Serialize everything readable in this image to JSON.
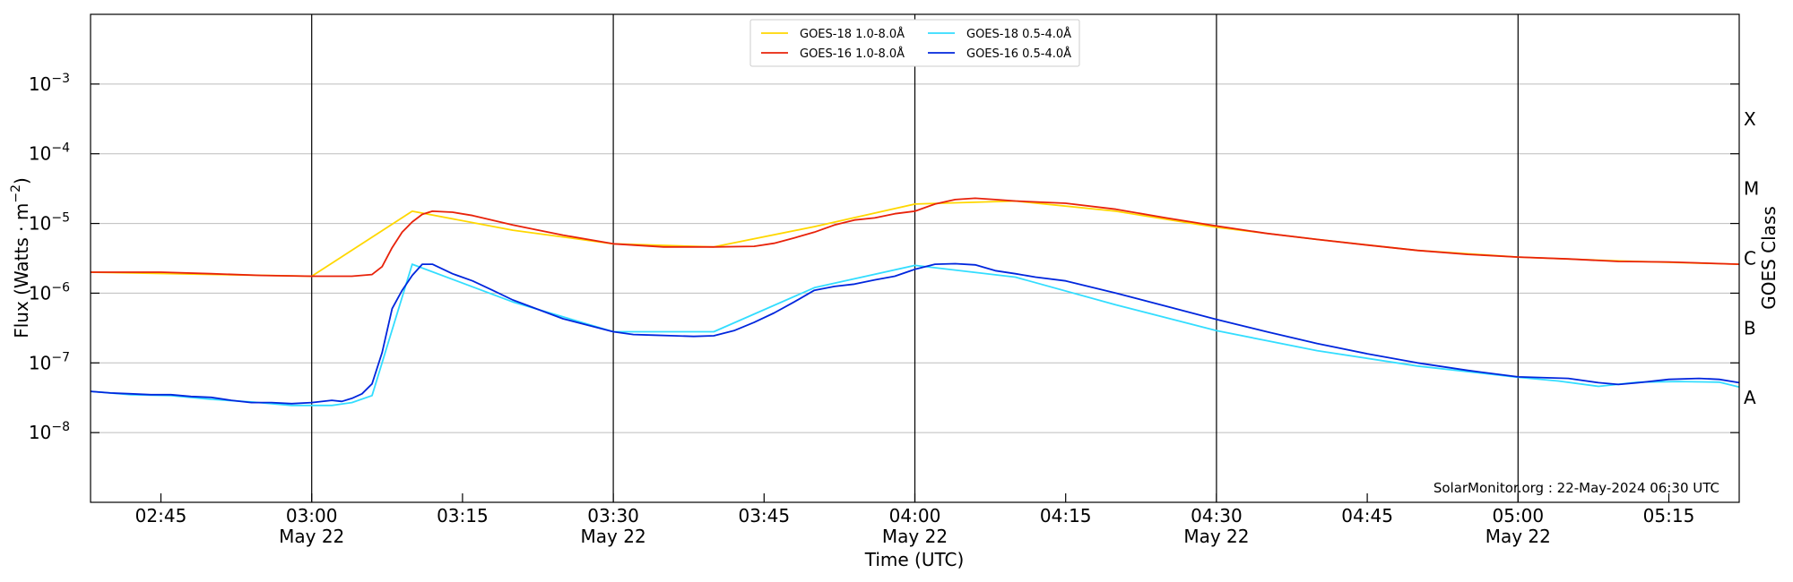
{
  "chart_data": {
    "type": "line",
    "ylabel_pre": "Flux (Watts · m",
    "ylabel_exp": "−2",
    "ylabel_post": ")",
    "right_label": "GOES Class",
    "xlabel": "Time (UTC)",
    "credit": "SolarMonitor.org : 22-May-2024 06:30 UTC",
    "y_scale": "log",
    "ylim": [
      1e-09,
      0.01
    ],
    "x_units": "minutes since 00:00 UTC, 22-May-2024",
    "xlim": [
      158,
      322
    ],
    "grid": "horizontal",
    "legend_position": "top-center",
    "y_ticks": [
      {
        "value": 1e-08,
        "base": "10",
        "exp": "−8"
      },
      {
        "value": 1e-07,
        "base": "10",
        "exp": "−7"
      },
      {
        "value": 1e-06,
        "base": "10",
        "exp": "−6"
      },
      {
        "value": 1e-05,
        "base": "10",
        "exp": "−5"
      },
      {
        "value": 0.0001,
        "base": "10",
        "exp": "−4"
      },
      {
        "value": 0.001,
        "base": "10",
        "exp": "−3"
      }
    ],
    "x_ticks": [
      {
        "value": 165,
        "label": "02:45",
        "sub": "",
        "major": false
      },
      {
        "value": 180,
        "label": "03:00",
        "sub": "May 22",
        "major": true
      },
      {
        "value": 195,
        "label": "03:15",
        "sub": "",
        "major": false
      },
      {
        "value": 210,
        "label": "03:30",
        "sub": "May 22",
        "major": true
      },
      {
        "value": 225,
        "label": "03:45",
        "sub": "",
        "major": false
      },
      {
        "value": 240,
        "label": "04:00",
        "sub": "May 22",
        "major": true
      },
      {
        "value": 255,
        "label": "04:15",
        "sub": "",
        "major": false
      },
      {
        "value": 270,
        "label": "04:30",
        "sub": "May 22",
        "major": true
      },
      {
        "value": 285,
        "label": "04:45",
        "sub": "",
        "major": false
      },
      {
        "value": 300,
        "label": "05:00",
        "sub": "May 22",
        "major": true
      },
      {
        "value": 315,
        "label": "05:15",
        "sub": "",
        "major": false
      }
    ],
    "goes_classes": [
      {
        "label": "A",
        "value": 3.16e-08
      },
      {
        "label": "B",
        "value": 3.16e-07
      },
      {
        "label": "C",
        "value": 3.16e-06
      },
      {
        "label": "M",
        "value": 3.16e-05
      },
      {
        "label": "X",
        "value": 0.000316
      }
    ],
    "legend": [
      {
        "label": "GOES-18 1.0-8.0Å",
        "color": "#FFD700"
      },
      {
        "label": "GOES-16 1.0-8.0Å",
        "color": "#E8220A"
      },
      {
        "label": "GOES-18 0.5-4.0Å",
        "color": "#33DDFF"
      },
      {
        "label": "GOES-16 0.5-4.0Å",
        "color": "#0026DD"
      }
    ],
    "series": [
      {
        "name": "GOES-18 1.0-8.0Å",
        "color": "#FFD700",
        "x": [
          158,
          180,
          190,
          200,
          210,
          220,
          230,
          240,
          250,
          260,
          270,
          280,
          290,
          300,
          310,
          322
        ],
        "y": [
          2e-06,
          1.75e-06,
          1.5e-05,
          8e-06,
          5.1e-06,
          4.6e-06,
          9e-06,
          1.9e-05,
          2.1e-05,
          1.5e-05,
          8.8e-06,
          5.9e-06,
          4.1e-06,
          3.3e-06,
          2.9e-06,
          2.6e-06
        ]
      },
      {
        "name": "GOES-16 1.0-8.0Å",
        "color": "#E8220A",
        "x": [
          158,
          165,
          170,
          175,
          180,
          184,
          186,
          187,
          188,
          189,
          190,
          191,
          192,
          194,
          196,
          200,
          205,
          210,
          215,
          220,
          224,
          226,
          228,
          230,
          232,
          234,
          236,
          238,
          240,
          242,
          244,
          246,
          248,
          250,
          255,
          260,
          265,
          270,
          275,
          280,
          285,
          290,
          295,
          300,
          305,
          310,
          315,
          322
        ],
        "y": [
          2e-06,
          2e-06,
          1.9e-06,
          1.8e-06,
          1.75e-06,
          1.75e-06,
          1.85e-06,
          2.4e-06,
          4.5e-06,
          7.5e-06,
          1.05e-05,
          1.35e-05,
          1.5e-05,
          1.45e-05,
          1.3e-05,
          9.5e-06,
          6.8e-06,
          5.1e-06,
          4.6e-06,
          4.6e-06,
          4.7e-06,
          5.2e-06,
          6.2e-06,
          7.5e-06,
          9.5e-06,
          1.12e-05,
          1.2e-05,
          1.38e-05,
          1.5e-05,
          1.9e-05,
          2.2e-05,
          2.3e-05,
          2.2e-05,
          2.1e-05,
          1.95e-05,
          1.6e-05,
          1.2e-05,
          9.2e-06,
          7.2e-06,
          5.9e-06,
          4.9e-06,
          4.1e-06,
          3.6e-06,
          3.3e-06,
          3.1e-06,
          2.85e-06,
          2.8e-06,
          2.6e-06
        ]
      },
      {
        "name": "GOES-18 0.5-4.0Å",
        "color": "#33DDFF",
        "x": [
          158,
          162,
          166,
          170,
          174,
          178,
          182,
          184,
          186,
          190,
          200,
          210,
          220,
          230,
          240,
          250,
          260,
          270,
          280,
          290,
          300,
          304,
          308,
          312,
          316,
          320,
          322
        ],
        "y": [
          3.9e-08,
          3.5e-08,
          3.4e-08,
          3e-08,
          2.75e-08,
          2.45e-08,
          2.45e-08,
          2.7e-08,
          3.4e-08,
          2.6e-06,
          7.5e-07,
          2.8e-07,
          2.8e-07,
          1.2e-06,
          2.5e-06,
          1.7e-06,
          6.8e-07,
          2.9e-07,
          1.5e-07,
          9e-08,
          6.2e-08,
          5.5e-08,
          4.6e-08,
          5.3e-08,
          5.4e-08,
          5.3e-08,
          4.5e-08
        ]
      },
      {
        "name": "GOES-16 0.5-4.0Å",
        "color": "#0026DD",
        "x": [
          158,
          160,
          162,
          164,
          166,
          168,
          170,
          172,
          174,
          176,
          178,
          180,
          182,
          183,
          184,
          185,
          186,
          187,
          188,
          189,
          190,
          191,
          192,
          194,
          196,
          198,
          200,
          205,
          210,
          212,
          214,
          216,
          218,
          220,
          222,
          224,
          226,
          228,
          230,
          232,
          234,
          236,
          238,
          240,
          242,
          244,
          246,
          248,
          250,
          252,
          255,
          260,
          265,
          270,
          275,
          280,
          285,
          290,
          295,
          300,
          305,
          308,
          310,
          312,
          315,
          318,
          320,
          322
        ],
        "y": [
          3.9e-08,
          3.7e-08,
          3.6e-08,
          3.5e-08,
          3.5e-08,
          3.3e-08,
          3.2e-08,
          2.9e-08,
          2.7e-08,
          2.7e-08,
          2.6e-08,
          2.7e-08,
          2.9e-08,
          2.8e-08,
          3.1e-08,
          3.6e-08,
          5e-08,
          1.4e-07,
          6e-07,
          1.1e-06,
          1.8e-06,
          2.6e-06,
          2.6e-06,
          1.9e-06,
          1.5e-06,
          1.1e-06,
          8e-07,
          4.3e-07,
          2.8e-07,
          2.55e-07,
          2.5e-07,
          2.45e-07,
          2.4e-07,
          2.45e-07,
          2.9e-07,
          3.8e-07,
          5.2e-07,
          7.5e-07,
          1.1e-06,
          1.25e-06,
          1.35e-06,
          1.55e-06,
          1.75e-06,
          2.2e-06,
          2.6e-06,
          2.65e-06,
          2.55e-06,
          2.1e-06,
          1.9e-06,
          1.7e-06,
          1.5e-06,
          1e-06,
          6.5e-07,
          4.2e-07,
          2.8e-07,
          1.9e-07,
          1.35e-07,
          1e-07,
          7.8e-08,
          6.3e-08,
          6e-08,
          5.2e-08,
          4.9e-08,
          5.2e-08,
          5.8e-08,
          6e-08,
          5.8e-08,
          5.2e-08
        ]
      }
    ]
  }
}
